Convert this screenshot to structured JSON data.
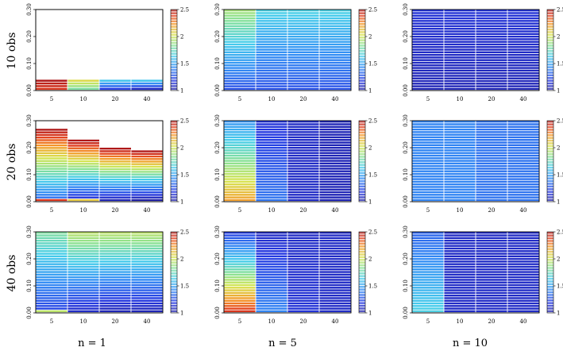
{
  "chart_data": {
    "type": "heatmap",
    "row_labels": [
      "10 obs",
      "20 obs",
      "40 obs"
    ],
    "col_labels": [
      "n = 1",
      "n = 5",
      "n = 10"
    ],
    "x_categories": [
      "5",
      "10",
      "20",
      "40"
    ],
    "y_ticks": [
      "0.00",
      "0.10",
      "0.20",
      "0.30"
    ],
    "ylim": [
      0,
      0.3
    ],
    "colorbar": {
      "min": 1,
      "max": 2.5,
      "ticks": [
        "1",
        "1.5",
        "2",
        "2.5"
      ]
    },
    "panels": [
      {
        "row": 0,
        "col": 0,
        "height": [
          0.04,
          0.04,
          0.04,
          0.04
        ],
        "bottom": [
          2.4,
          1.8,
          1.2,
          1.1
        ],
        "top": [
          2.5,
          2.05,
          1.6,
          1.6
        ]
      },
      {
        "row": 0,
        "col": 1,
        "height": [
          0.3,
          0.3,
          0.3,
          0.3
        ],
        "bottom": [
          1.25,
          1.25,
          1.25,
          1.25
        ],
        "top": [
          1.9,
          1.65,
          1.65,
          1.65
        ]
      },
      {
        "row": 0,
        "col": 2,
        "height": [
          0.3,
          0.3,
          0.3,
          0.3
        ],
        "bottom": [
          1.05,
          1.05,
          1.05,
          1.05
        ],
        "top": [
          1.15,
          1.15,
          1.15,
          1.15
        ]
      },
      {
        "row": 1,
        "col": 0,
        "height": [
          0.27,
          0.23,
          0.2,
          0.19
        ],
        "bottom": [
          1.3,
          1.1,
          1.05,
          1.0
        ],
        "top": [
          2.5,
          2.5,
          2.5,
          2.5
        ],
        "base_row": [
          2.4,
          2.1,
          null,
          null
        ]
      },
      {
        "row": 1,
        "col": 1,
        "height": [
          0.3,
          0.3,
          0.3,
          0.3
        ],
        "bottom": [
          2.2,
          1.35,
          1.1,
          1.05
        ],
        "top": [
          1.45,
          1.15,
          1.1,
          1.05
        ]
      },
      {
        "row": 1,
        "col": 2,
        "height": [
          0.3,
          0.3,
          0.3,
          0.3
        ],
        "bottom": [
          1.4,
          1.4,
          1.35,
          1.35
        ],
        "top": [
          1.4,
          1.4,
          1.35,
          1.35
        ]
      },
      {
        "row": 2,
        "col": 0,
        "height": [
          0.3,
          0.3,
          0.3,
          0.3
        ],
        "bottom": [
          1.2,
          1.1,
          1.05,
          1.05
        ],
        "top": [
          1.8,
          1.95,
          1.95,
          1.95
        ],
        "base_row": [
          1.95,
          null,
          null,
          null
        ]
      },
      {
        "row": 2,
        "col": 1,
        "height": [
          0.3,
          0.3,
          0.3,
          0.3
        ],
        "bottom": [
          2.4,
          1.4,
          1.15,
          1.1
        ],
        "top": [
          1.2,
          1.1,
          1.1,
          1.1
        ]
      },
      {
        "row": 2,
        "col": 2,
        "height": [
          0.3,
          0.3,
          0.3,
          0.3
        ],
        "bottom": [
          1.65,
          1.1,
          1.1,
          1.1
        ],
        "top": [
          1.3,
          1.1,
          1.1,
          1.1
        ]
      }
    ]
  }
}
